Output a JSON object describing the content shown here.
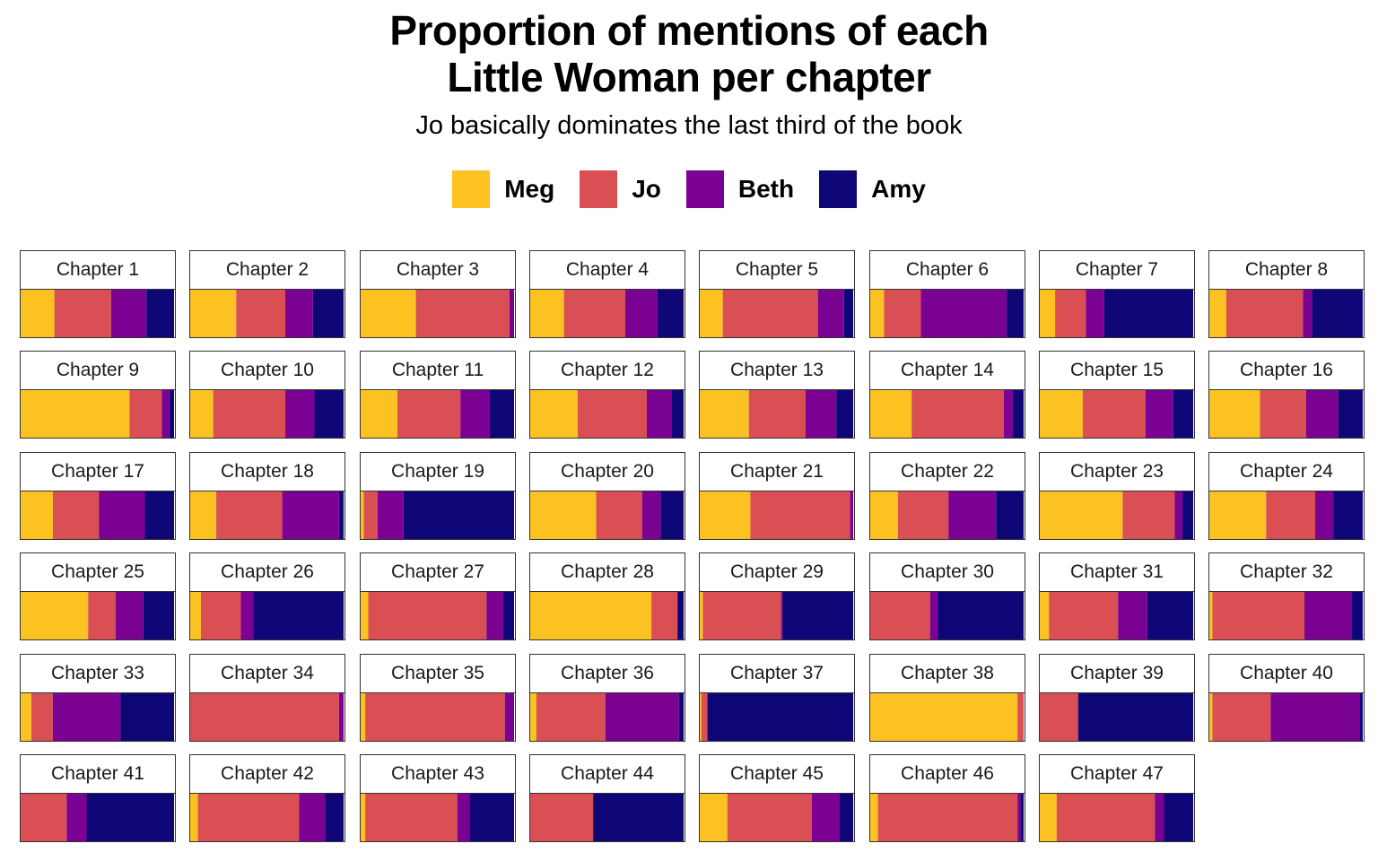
{
  "title_line1": "Proportion of mentions of each",
  "title_line2": "Little Woman per chapter",
  "subtitle": "Jo basically dominates the last third of the book",
  "legend": [
    {
      "name": "Meg",
      "color": "#FBC221"
    },
    {
      "name": "Jo",
      "color": "#D94F54"
    },
    {
      "name": "Beth",
      "color": "#7B0193"
    },
    {
      "name": "Amy",
      "color": "#0E0677"
    }
  ],
  "chart_data": {
    "type": "bar",
    "stacked": "proportion",
    "orientation": "horizontal",
    "title": "Proportion of mentions of each Little Woman per chapter",
    "subtitle": "Jo basically dominates the last third of the book",
    "series_names": [
      "Meg",
      "Jo",
      "Beth",
      "Amy"
    ],
    "colors": [
      "#FBC221",
      "#D94F54",
      "#7B0193",
      "#0E0677"
    ],
    "legend_position": "top",
    "panels": [
      {
        "label": "Chapter 1",
        "values": [
          0.22,
          0.37,
          0.23,
          0.18
        ]
      },
      {
        "label": "Chapter 2",
        "values": [
          0.3,
          0.32,
          0.18,
          0.2
        ]
      },
      {
        "label": "Chapter 3",
        "values": [
          0.36,
          0.61,
          0.03,
          0.0
        ]
      },
      {
        "label": "Chapter 4",
        "values": [
          0.22,
          0.4,
          0.21,
          0.17
        ]
      },
      {
        "label": "Chapter 5",
        "values": [
          0.15,
          0.62,
          0.17,
          0.06
        ]
      },
      {
        "label": "Chapter 6",
        "values": [
          0.09,
          0.24,
          0.56,
          0.11
        ]
      },
      {
        "label": "Chapter 7",
        "values": [
          0.1,
          0.2,
          0.12,
          0.58
        ]
      },
      {
        "label": "Chapter 8",
        "values": [
          0.11,
          0.5,
          0.06,
          0.33
        ]
      },
      {
        "label": "Chapter 9",
        "values": [
          0.71,
          0.21,
          0.05,
          0.03
        ]
      },
      {
        "label": "Chapter 10",
        "values": [
          0.15,
          0.47,
          0.19,
          0.19
        ]
      },
      {
        "label": "Chapter 11",
        "values": [
          0.24,
          0.41,
          0.19,
          0.16
        ]
      },
      {
        "label": "Chapter 12",
        "values": [
          0.31,
          0.45,
          0.16,
          0.08
        ]
      },
      {
        "label": "Chapter 13",
        "values": [
          0.32,
          0.37,
          0.2,
          0.11
        ]
      },
      {
        "label": "Chapter 14",
        "values": [
          0.27,
          0.6,
          0.06,
          0.07
        ]
      },
      {
        "label": "Chapter 15",
        "values": [
          0.28,
          0.41,
          0.18,
          0.13
        ]
      },
      {
        "label": "Chapter 16",
        "values": [
          0.33,
          0.3,
          0.21,
          0.16
        ]
      },
      {
        "label": "Chapter 17",
        "values": [
          0.21,
          0.3,
          0.3,
          0.19
        ]
      },
      {
        "label": "Chapter 18",
        "values": [
          0.17,
          0.43,
          0.37,
          0.03
        ]
      },
      {
        "label": "Chapter 19",
        "values": [
          0.02,
          0.09,
          0.17,
          0.72
        ]
      },
      {
        "label": "Chapter 20",
        "values": [
          0.43,
          0.3,
          0.12,
          0.15
        ]
      },
      {
        "label": "Chapter 21",
        "values": [
          0.33,
          0.65,
          0.02,
          0.0
        ]
      },
      {
        "label": "Chapter 22",
        "values": [
          0.18,
          0.33,
          0.31,
          0.18
        ]
      },
      {
        "label": "Chapter 23",
        "values": [
          0.54,
          0.34,
          0.05,
          0.07
        ]
      },
      {
        "label": "Chapter 24",
        "values": [
          0.37,
          0.32,
          0.12,
          0.19
        ]
      },
      {
        "label": "Chapter 25",
        "values": [
          0.44,
          0.18,
          0.18,
          0.2
        ]
      },
      {
        "label": "Chapter 26",
        "values": [
          0.07,
          0.26,
          0.08,
          0.59
        ]
      },
      {
        "label": "Chapter 27",
        "values": [
          0.05,
          0.77,
          0.11,
          0.07
        ]
      },
      {
        "label": "Chapter 28",
        "values": [
          0.79,
          0.17,
          0.0,
          0.04
        ]
      },
      {
        "label": "Chapter 29",
        "values": [
          0.02,
          0.51,
          0.01,
          0.46
        ]
      },
      {
        "label": "Chapter 30",
        "values": [
          0.0,
          0.39,
          0.05,
          0.56
        ]
      },
      {
        "label": "Chapter 31",
        "values": [
          0.06,
          0.45,
          0.19,
          0.3
        ]
      },
      {
        "label": "Chapter 32",
        "values": [
          0.02,
          0.6,
          0.31,
          0.07
        ]
      },
      {
        "label": "Chapter 33",
        "values": [
          0.07,
          0.14,
          0.44,
          0.35
        ]
      },
      {
        "label": "Chapter 34",
        "values": [
          0.0,
          0.97,
          0.03,
          0.0
        ]
      },
      {
        "label": "Chapter 35",
        "values": [
          0.03,
          0.91,
          0.06,
          0.0
        ]
      },
      {
        "label": "Chapter 36",
        "values": [
          0.04,
          0.45,
          0.48,
          0.03
        ]
      },
      {
        "label": "Chapter 37",
        "values": [
          0.01,
          0.04,
          0.0,
          0.95
        ]
      },
      {
        "label": "Chapter 38",
        "values": [
          0.96,
          0.04,
          0.0,
          0.0
        ]
      },
      {
        "label": "Chapter 39",
        "values": [
          0.0,
          0.25,
          0.0,
          0.75
        ]
      },
      {
        "label": "Chapter 40",
        "values": [
          0.02,
          0.38,
          0.58,
          0.02
        ]
      },
      {
        "label": "Chapter 41",
        "values": [
          0.0,
          0.3,
          0.13,
          0.57
        ]
      },
      {
        "label": "Chapter 42",
        "values": [
          0.05,
          0.66,
          0.17,
          0.12
        ]
      },
      {
        "label": "Chapter 43",
        "values": [
          0.03,
          0.6,
          0.08,
          0.29
        ]
      },
      {
        "label": "Chapter 44",
        "values": [
          0.0,
          0.41,
          0.0,
          0.59
        ]
      },
      {
        "label": "Chapter 45",
        "values": [
          0.18,
          0.55,
          0.18,
          0.09
        ]
      },
      {
        "label": "Chapter 46",
        "values": [
          0.05,
          0.91,
          0.02,
          0.02
        ]
      },
      {
        "label": "Chapter 47",
        "values": [
          0.11,
          0.64,
          0.06,
          0.19
        ]
      }
    ]
  }
}
